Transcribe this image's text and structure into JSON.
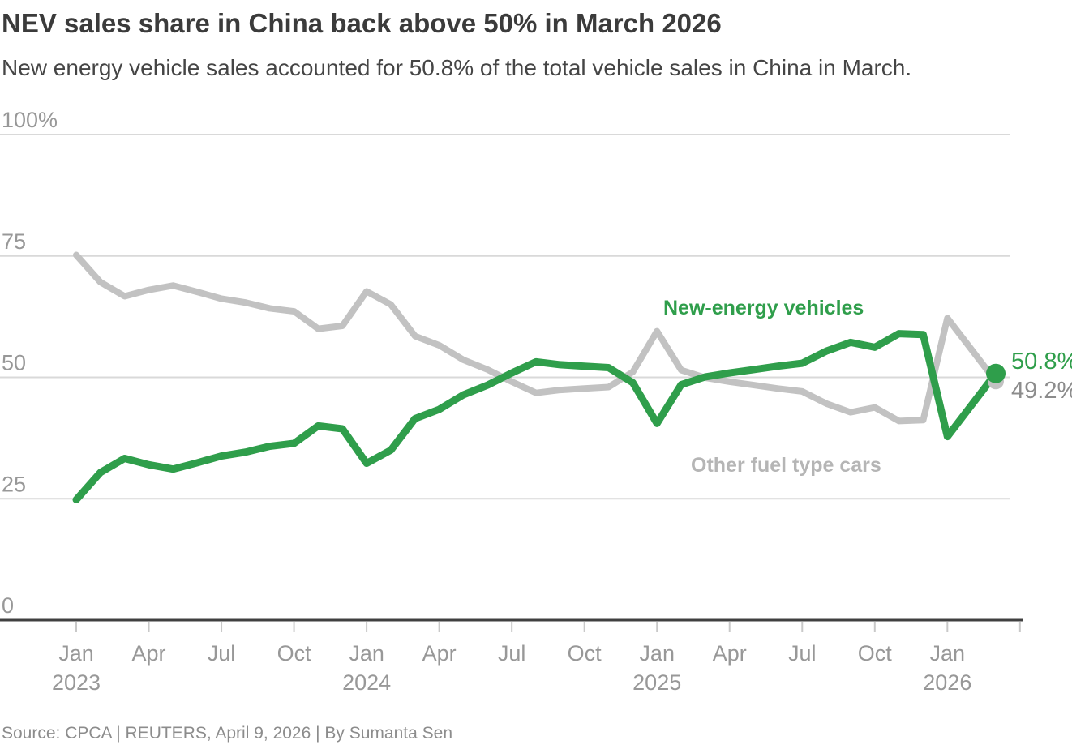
{
  "colors": {
    "green": "#2f9e4b",
    "gray_line": "#c2c2c2",
    "gray_legend": "#b5b5b5",
    "gray_end_label": "#8c8c8c",
    "axis_text": "#989898",
    "gridline": "#d9d9d9",
    "axis_line": "#404040",
    "tick_mark": "#c9c9c9",
    "title_text": "#3b3b3b",
    "subtitle_text": "#454545",
    "source_text": "#8c8c8c"
  },
  "chart_data": {
    "type": "line",
    "title": "NEV sales share in China back above 50% in March 2026",
    "subtitle": "New energy vehicle sales accounted for 50.8% of the total vehicle sales in China in March.",
    "source": "Source: CPCA | REUTERS, April 9, 2026 | By Sumanta Sen",
    "unit": "%",
    "ylim": [
      0,
      100
    ],
    "grid": "horizontal",
    "legend_position": "inline-labels",
    "x": [
      "Jan 2023",
      "Feb 2023",
      "Mar 2023",
      "Apr 2023",
      "May 2023",
      "Jun 2023",
      "Jul 2023",
      "Aug 2023",
      "Sep 2023",
      "Oct 2023",
      "Nov 2023",
      "Dec 2023",
      "Jan 2024",
      "Feb 2024",
      "Mar 2024",
      "Apr 2024",
      "May 2024",
      "Jun 2024",
      "Jul 2024",
      "Aug 2024",
      "Sep 2024",
      "Oct 2024",
      "Nov 2024",
      "Dec 2024",
      "Jan 2025",
      "Feb 2025",
      "Mar 2025",
      "Apr 2025",
      "May 2025",
      "Jun 2025",
      "Jul 2025",
      "Aug 2025",
      "Sep 2025",
      "Oct 2025",
      "Nov 2025",
      "Dec 2025",
      "Jan 2026",
      "Feb 2026",
      "Mar 2026"
    ],
    "series": [
      {
        "name": "New-energy vehicles",
        "color": "#2f9e4b",
        "end_label": "50.8%",
        "line_width": 9,
        "dot_radius": 12,
        "values": [
          24.8,
          30.4,
          33.3,
          32.0,
          31.1,
          32.4,
          33.8,
          34.6,
          35.8,
          36.4,
          40.0,
          39.4,
          32.3,
          35.0,
          41.5,
          43.4,
          46.4,
          48.4,
          50.9,
          53.2,
          52.6,
          52.3,
          52.0,
          48.9,
          40.5,
          48.5,
          50.1,
          50.9,
          51.6,
          52.3,
          52.9,
          55.4,
          57.2,
          56.2,
          59.0,
          58.8,
          37.8,
          44.3,
          50.8
        ]
      },
      {
        "name": "Other fuel type cars",
        "color": "#c2c2c2",
        "end_label": "49.2%",
        "line_width": 8,
        "dot_radius": 10,
        "values": [
          75.2,
          69.6,
          66.7,
          68.0,
          68.9,
          67.6,
          66.2,
          65.4,
          64.2,
          63.6,
          60.0,
          60.6,
          67.7,
          65.0,
          58.5,
          56.6,
          53.6,
          51.6,
          49.1,
          46.8,
          47.4,
          47.7,
          48.0,
          51.1,
          59.5,
          51.5,
          49.9,
          49.1,
          48.4,
          47.7,
          47.1,
          44.6,
          42.8,
          43.8,
          41.0,
          41.2,
          62.2,
          55.7,
          49.2
        ]
      }
    ],
    "y_ticks": [
      {
        "value": 100,
        "label": "100%"
      },
      {
        "value": 75,
        "label": "75"
      },
      {
        "value": 50,
        "label": "50"
      },
      {
        "value": 25,
        "label": "25"
      },
      {
        "value": 0,
        "label": "0"
      }
    ],
    "x_ticks": [
      {
        "i": 0,
        "month": "Jan",
        "year": "2023"
      },
      {
        "i": 3,
        "month": "Apr",
        "year": ""
      },
      {
        "i": 6,
        "month": "Jul",
        "year": ""
      },
      {
        "i": 9,
        "month": "Oct",
        "year": ""
      },
      {
        "i": 12,
        "month": "Jan",
        "year": "2024"
      },
      {
        "i": 15,
        "month": "Apr",
        "year": ""
      },
      {
        "i": 18,
        "month": "Jul",
        "year": ""
      },
      {
        "i": 21,
        "month": "Oct",
        "year": ""
      },
      {
        "i": 24,
        "month": "Jan",
        "year": "2025"
      },
      {
        "i": 27,
        "month": "Apr",
        "year": ""
      },
      {
        "i": 30,
        "month": "Jul",
        "year": ""
      },
      {
        "i": 33,
        "month": "Oct",
        "year": ""
      },
      {
        "i": 36,
        "month": "Jan",
        "year": "2026"
      },
      {
        "i": 39,
        "month": "",
        "year": ""
      }
    ]
  }
}
